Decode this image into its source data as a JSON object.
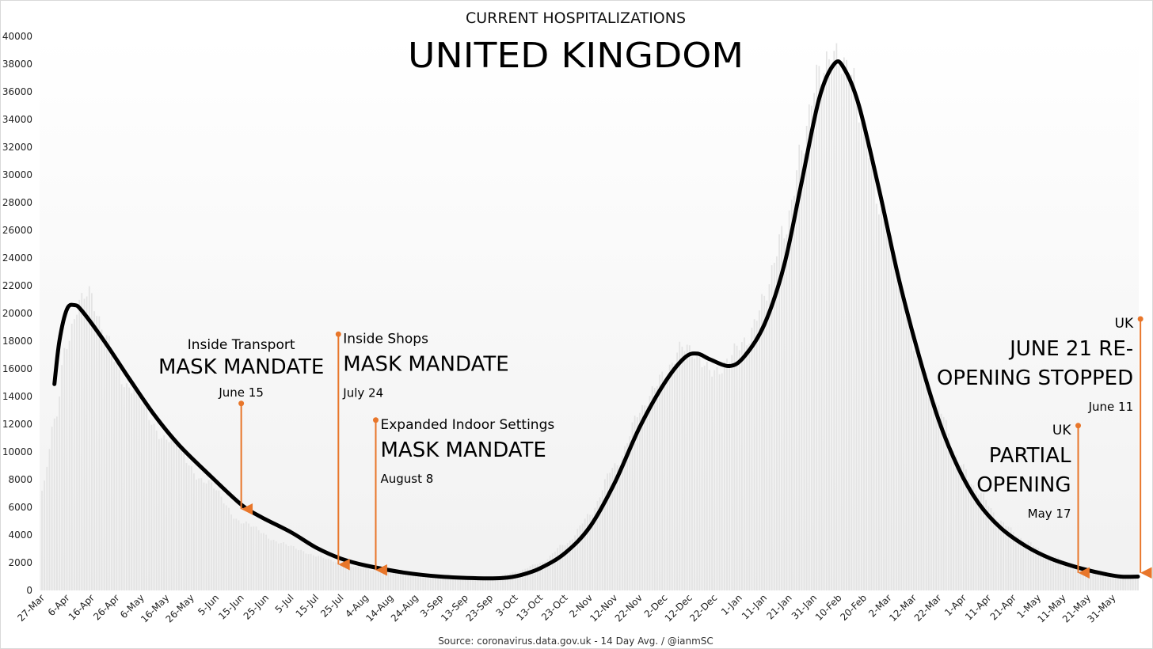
{
  "chart_data": {
    "type": "bar",
    "subtitle": "CURRENT HOSPITALIZATIONS",
    "title": "UNITED KINGDOM",
    "source": "Source: coronavirus.data.gov.uk - 14 Day Avg. / @ianmSC",
    "ylim": [
      0,
      40000
    ],
    "yticks": [
      0,
      2000,
      4000,
      6000,
      8000,
      10000,
      12000,
      14000,
      16000,
      18000,
      20000,
      22000,
      24000,
      26000,
      28000,
      30000,
      32000,
      34000,
      36000,
      38000,
      40000
    ],
    "xlabels": [
      "27-Mar",
      "6-Apr",
      "16-Apr",
      "26-Apr",
      "6-May",
      "16-May",
      "26-May",
      "5-Jun",
      "15-Jun",
      "25-Jun",
      "5-Jul",
      "15-Jul",
      "25-Jul",
      "4-Aug",
      "14-Aug",
      "24-Aug",
      "3-Sep",
      "13-Sep",
      "23-Sep",
      "3-Oct",
      "13-Oct",
      "23-Oct",
      "2-Nov",
      "12-Nov",
      "22-Nov",
      "2-Dec",
      "12-Dec",
      "22-Dec",
      "1-Jan",
      "11-Jan",
      "21-Jan",
      "31-Jan",
      "10-Feb",
      "20-Feb",
      "2-Mar",
      "12-Mar",
      "22-Mar",
      "1-Apr",
      "11-Apr",
      "21-Apr",
      "1-May",
      "11-May",
      "21-May",
      "31-May"
    ],
    "series": [
      {
        "kind": "daily-bars",
        "color": "#e3e3e3",
        "days": 441,
        "anchors": [
          [
            0,
            7200
          ],
          [
            5,
            12000
          ],
          [
            10,
            18000
          ],
          [
            15,
            21000
          ],
          [
            18,
            21500
          ],
          [
            25,
            18500
          ],
          [
            35,
            14500
          ],
          [
            50,
            11000
          ],
          [
            65,
            8000
          ],
          [
            80,
            5000
          ],
          [
            95,
            3500
          ],
          [
            110,
            2500
          ],
          [
            125,
            1700
          ],
          [
            140,
            1300
          ],
          [
            155,
            1000
          ],
          [
            170,
            850
          ],
          [
            180,
            900
          ],
          [
            190,
            1300
          ],
          [
            200,
            2000
          ],
          [
            210,
            3300
          ],
          [
            220,
            5500
          ],
          [
            230,
            9000
          ],
          [
            240,
            12800
          ],
          [
            250,
            15800
          ],
          [
            257,
            17500
          ],
          [
            262,
            16900
          ],
          [
            272,
            15800
          ],
          [
            282,
            18000
          ],
          [
            290,
            21000
          ],
          [
            298,
            26000
          ],
          [
            305,
            32000
          ],
          [
            312,
            37000
          ],
          [
            318,
            39300
          ],
          [
            324,
            37500
          ],
          [
            330,
            33000
          ],
          [
            338,
            27000
          ],
          [
            345,
            21500
          ],
          [
            352,
            17000
          ],
          [
            360,
            13000
          ],
          [
            368,
            9500
          ],
          [
            376,
            7000
          ],
          [
            385,
            5000
          ],
          [
            395,
            3500
          ],
          [
            405,
            2500
          ],
          [
            415,
            1800
          ],
          [
            425,
            1200
          ],
          [
            435,
            1050
          ],
          [
            440,
            1100
          ]
        ]
      },
      {
        "kind": "smoothed-line",
        "color": "#000000",
        "anchors": [
          [
            5,
            14900
          ],
          [
            7,
            18000
          ],
          [
            10,
            20300
          ],
          [
            13,
            20600
          ],
          [
            16,
            20200
          ],
          [
            25,
            18000
          ],
          [
            35,
            15300
          ],
          [
            45,
            12700
          ],
          [
            55,
            10500
          ],
          [
            68,
            8200
          ],
          [
            80,
            6200
          ],
          [
            88,
            5300
          ],
          [
            100,
            4200
          ],
          [
            110,
            3100
          ],
          [
            120,
            2300
          ],
          [
            130,
            1800
          ],
          [
            145,
            1300
          ],
          [
            160,
            1000
          ],
          [
            175,
            880
          ],
          [
            185,
            900
          ],
          [
            192,
            1100
          ],
          [
            200,
            1600
          ],
          [
            210,
            2700
          ],
          [
            220,
            4600
          ],
          [
            230,
            7800
          ],
          [
            240,
            11800
          ],
          [
            250,
            15000
          ],
          [
            258,
            16800
          ],
          [
            263,
            17100
          ],
          [
            268,
            16700
          ],
          [
            276,
            16200
          ],
          [
            282,
            16900
          ],
          [
            290,
            19200
          ],
          [
            298,
            23500
          ],
          [
            305,
            29500
          ],
          [
            312,
            35500
          ],
          [
            318,
            38000
          ],
          [
            322,
            37700
          ],
          [
            328,
            35000
          ],
          [
            336,
            29000
          ],
          [
            344,
            22500
          ],
          [
            352,
            17000
          ],
          [
            360,
            12300
          ],
          [
            368,
            8800
          ],
          [
            376,
            6300
          ],
          [
            385,
            4500
          ],
          [
            395,
            3200
          ],
          [
            405,
            2300
          ],
          [
            415,
            1700
          ],
          [
            425,
            1250
          ],
          [
            433,
            1000
          ],
          [
            440,
            1000
          ]
        ]
      }
    ],
    "annotations": [
      {
        "top": "Inside Transport",
        "big": [
          "MASK MANDATE"
        ],
        "date": "June 15",
        "day": 80,
        "from": 13500,
        "to": 5700,
        "text_side": "above"
      },
      {
        "top": "Inside Shops",
        "big": [
          "MASK MANDATE"
        ],
        "date": "July 24",
        "day": 119,
        "from": 18500,
        "to": 1700,
        "text_side": "right"
      },
      {
        "top": "Expanded Indoor Settings",
        "big": [
          "MASK MANDATE"
        ],
        "date": "August 8",
        "day": 134,
        "from": 12300,
        "to": 1300,
        "text_side": "right"
      },
      {
        "top": "UK",
        "big": [
          "PARTIAL",
          "OPENING"
        ],
        "date": "May 17",
        "day": 416,
        "from": 11900,
        "to": 1100,
        "text_side": "left"
      },
      {
        "top": "UK",
        "big": [
          "JUNE 21 RE-",
          "OPENING STOPPED"
        ],
        "date": "June 11",
        "day": 441,
        "from": 19600,
        "to": 1100,
        "text_side": "left"
      }
    ],
    "annotation_color": "#e8762a"
  }
}
